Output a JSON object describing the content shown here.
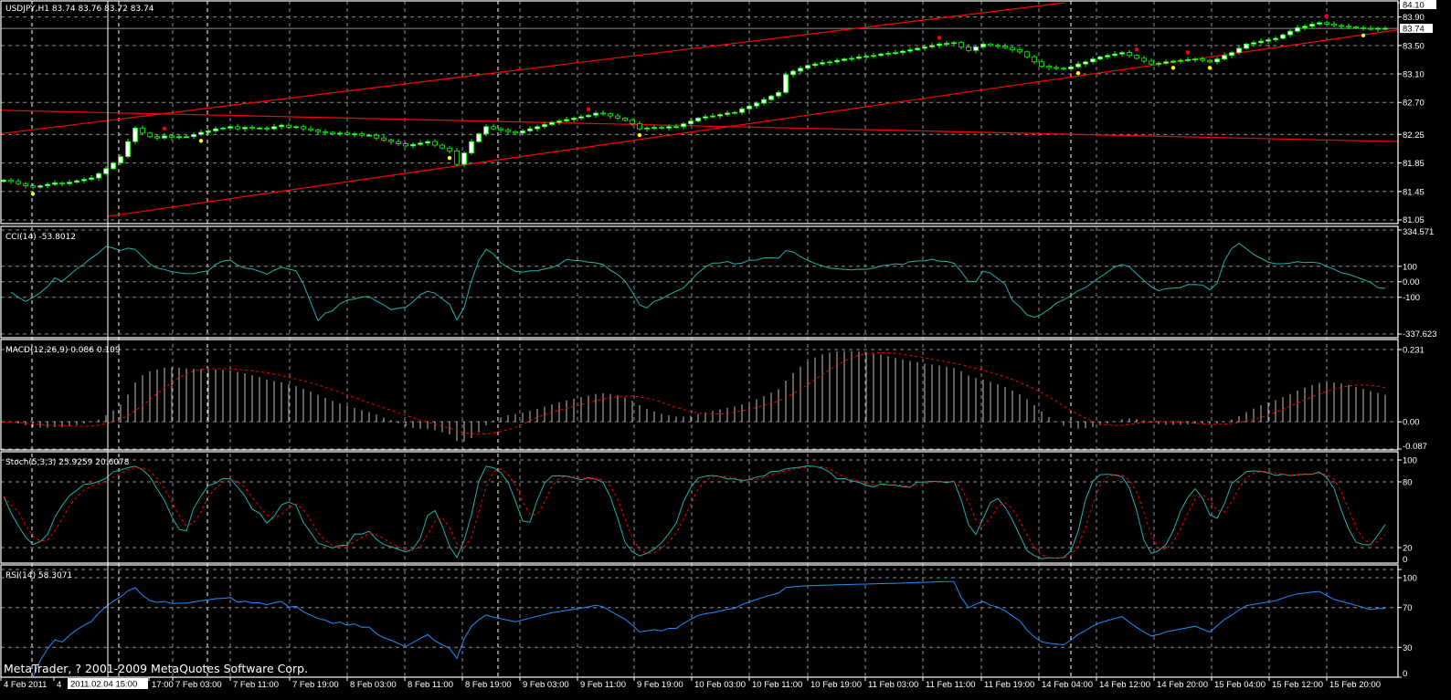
{
  "header": {
    "symbol_label": "USDJPY,H1  83.74 83.76 83.72 83.74"
  },
  "copyright": "MetaTrader, ? 2001-2009 MetaQuotes Software Corp.",
  "crosshair_label": "2011.02.04 15:00",
  "colors": {
    "background": "#000000",
    "candle_up_body": "#ffffff",
    "candle_outline": "#00ff00",
    "trendline": "#ff0000",
    "fractal_up": "#ff0000",
    "fractal_down": "#ffff00",
    "cci": "#20b2aa",
    "macd_histogram": "#c0c0c0",
    "macd_signal": "#ff0000",
    "stoch_main": "#20b2aa",
    "stoch_signal": "#ff0000",
    "rsi": "#1e90ff",
    "grid": "#8a8f99"
  },
  "time_axis": {
    "labels": [
      "4 Feb 2011",
      "4",
      "17:00",
      "7 Feb 03:00",
      "7 Feb 11:00",
      "7 Feb 19:00",
      "8 Feb 03:00",
      "8 Feb 11:00",
      "8 Feb 19:00",
      "9 Feb 03:00",
      "9 Feb 11:00",
      "9 Feb 19:00",
      "10 Feb 03:00",
      "10 Feb 11:00",
      "10 Feb 19:00",
      "11 Feb 03:00",
      "11 Feb 11:00",
      "11 Feb 19:00",
      "14 Feb 04:00",
      "14 Feb 12:00",
      "14 Feb 20:00",
      "15 Feb 04:00",
      "15 Feb 12:00",
      "15 Feb 20:00"
    ]
  },
  "chart_data": [
    {
      "id": "price",
      "type": "candlestick",
      "title": "USDJPY,H1",
      "ohlc_last": {
        "open": 83.74,
        "high": 83.76,
        "low": 83.72,
        "close": 83.74
      },
      "ylim": [
        81.05,
        84.1
      ],
      "yticks": [
        "84.10",
        "83.90",
        "83.50",
        "83.10",
        "82.70",
        "82.25",
        "81.85",
        "81.45",
        "81.05"
      ],
      "current_price_label": "83.74",
      "current_price": 83.74,
      "grid": true,
      "closes": [
        81.61,
        81.59,
        81.56,
        81.53,
        81.51,
        81.53,
        81.55,
        81.57,
        81.56,
        81.58,
        81.6,
        81.62,
        81.64,
        81.7,
        81.77,
        81.85,
        81.94,
        82.15,
        82.34,
        82.27,
        82.22,
        82.2,
        82.23,
        82.21,
        82.22,
        82.22,
        82.25,
        82.28,
        82.3,
        82.33,
        82.34,
        82.36,
        82.33,
        82.35,
        82.34,
        82.34,
        82.33,
        82.36,
        82.38,
        82.35,
        82.36,
        82.33,
        82.31,
        82.29,
        82.28,
        82.26,
        82.27,
        82.25,
        82.26,
        82.24,
        82.24,
        82.2,
        82.17,
        82.15,
        82.12,
        82.09,
        82.11,
        82.13,
        82.15,
        82.1,
        82.06,
        82.02,
        81.83,
        81.99,
        82.15,
        82.26,
        82.36,
        82.33,
        82.31,
        82.29,
        82.27,
        82.3,
        82.33,
        82.36,
        82.39,
        82.42,
        82.44,
        82.46,
        82.48,
        82.5,
        82.52,
        82.55,
        82.54,
        82.51,
        82.48,
        82.45,
        82.4,
        82.33,
        82.34,
        82.35,
        82.34,
        82.36,
        82.36,
        82.4,
        82.44,
        82.48,
        82.5,
        82.51,
        82.53,
        82.55,
        82.56,
        82.61,
        82.65,
        82.69,
        82.74,
        82.79,
        82.84,
        83.09,
        83.14,
        83.18,
        83.22,
        83.24,
        83.26,
        83.27,
        83.29,
        83.31,
        83.32,
        83.34,
        83.35,
        83.36,
        83.38,
        83.39,
        83.4,
        83.42,
        83.44,
        83.46,
        83.48,
        83.5,
        83.52,
        83.53,
        83.54,
        83.48,
        83.43,
        83.48,
        83.52,
        83.5,
        83.49,
        83.47,
        83.44,
        83.41,
        83.34,
        83.27,
        83.21,
        83.19,
        83.18,
        83.17,
        83.2,
        83.24,
        83.27,
        83.31,
        83.34,
        83.36,
        83.38,
        83.4,
        83.36,
        83.32,
        83.28,
        83.24,
        83.25,
        83.27,
        83.28,
        83.29,
        83.3,
        83.31,
        83.29,
        83.27,
        83.31,
        83.36,
        83.4,
        83.46,
        83.52,
        83.54,
        83.56,
        83.58,
        83.6,
        83.65,
        83.7,
        83.75,
        83.77,
        83.8,
        83.82,
        83.8,
        83.78,
        83.77,
        83.76,
        83.75,
        83.74,
        83.73,
        83.74,
        83.74
      ],
      "fractals_up_bars": [
        22,
        80,
        128,
        155,
        162,
        181
      ],
      "fractals_down_bars": [
        4,
        27,
        61,
        87,
        147,
        160,
        165,
        186
      ],
      "trendlines": [
        {
          "name": "channel-upper",
          "start_price": 82.26,
          "end_price": 84.1
        },
        {
          "name": "channel-lower",
          "start_price": 81.1,
          "end_price": 83.72
        },
        {
          "name": "horizontal-support",
          "start_price": 82.59,
          "end_price": 82.15
        }
      ]
    },
    {
      "id": "cci",
      "type": "line",
      "title": "CCI(14) -53.8012",
      "yticks": [
        "334.571",
        "100",
        "0.00",
        "-100",
        "-337.623"
      ],
      "ylim": [
        -337.623,
        334.571
      ],
      "levels": [
        100,
        0,
        -100
      ]
    },
    {
      "id": "macd",
      "type": "bar+line",
      "title": "MACD(12,26,9) 0.086 0.109",
      "yticks": [
        "0.231",
        "0.00",
        "-0.087"
      ],
      "ylim": [
        -0.087,
        0.231
      ]
    },
    {
      "id": "stoch",
      "type": "line",
      "title": "Stoch(5,3,3) 25.9259 20.6078",
      "yticks": [
        "100",
        "80",
        "20",
        "0"
      ],
      "ylim": [
        0,
        100
      ],
      "levels": [
        80,
        20
      ]
    },
    {
      "id": "rsi",
      "type": "line",
      "title": "RSI(14) 58.3071",
      "yticks": [
        "100",
        "70",
        "30",
        "0"
      ],
      "ylim": [
        0,
        100
      ],
      "levels": [
        70,
        30
      ]
    }
  ]
}
